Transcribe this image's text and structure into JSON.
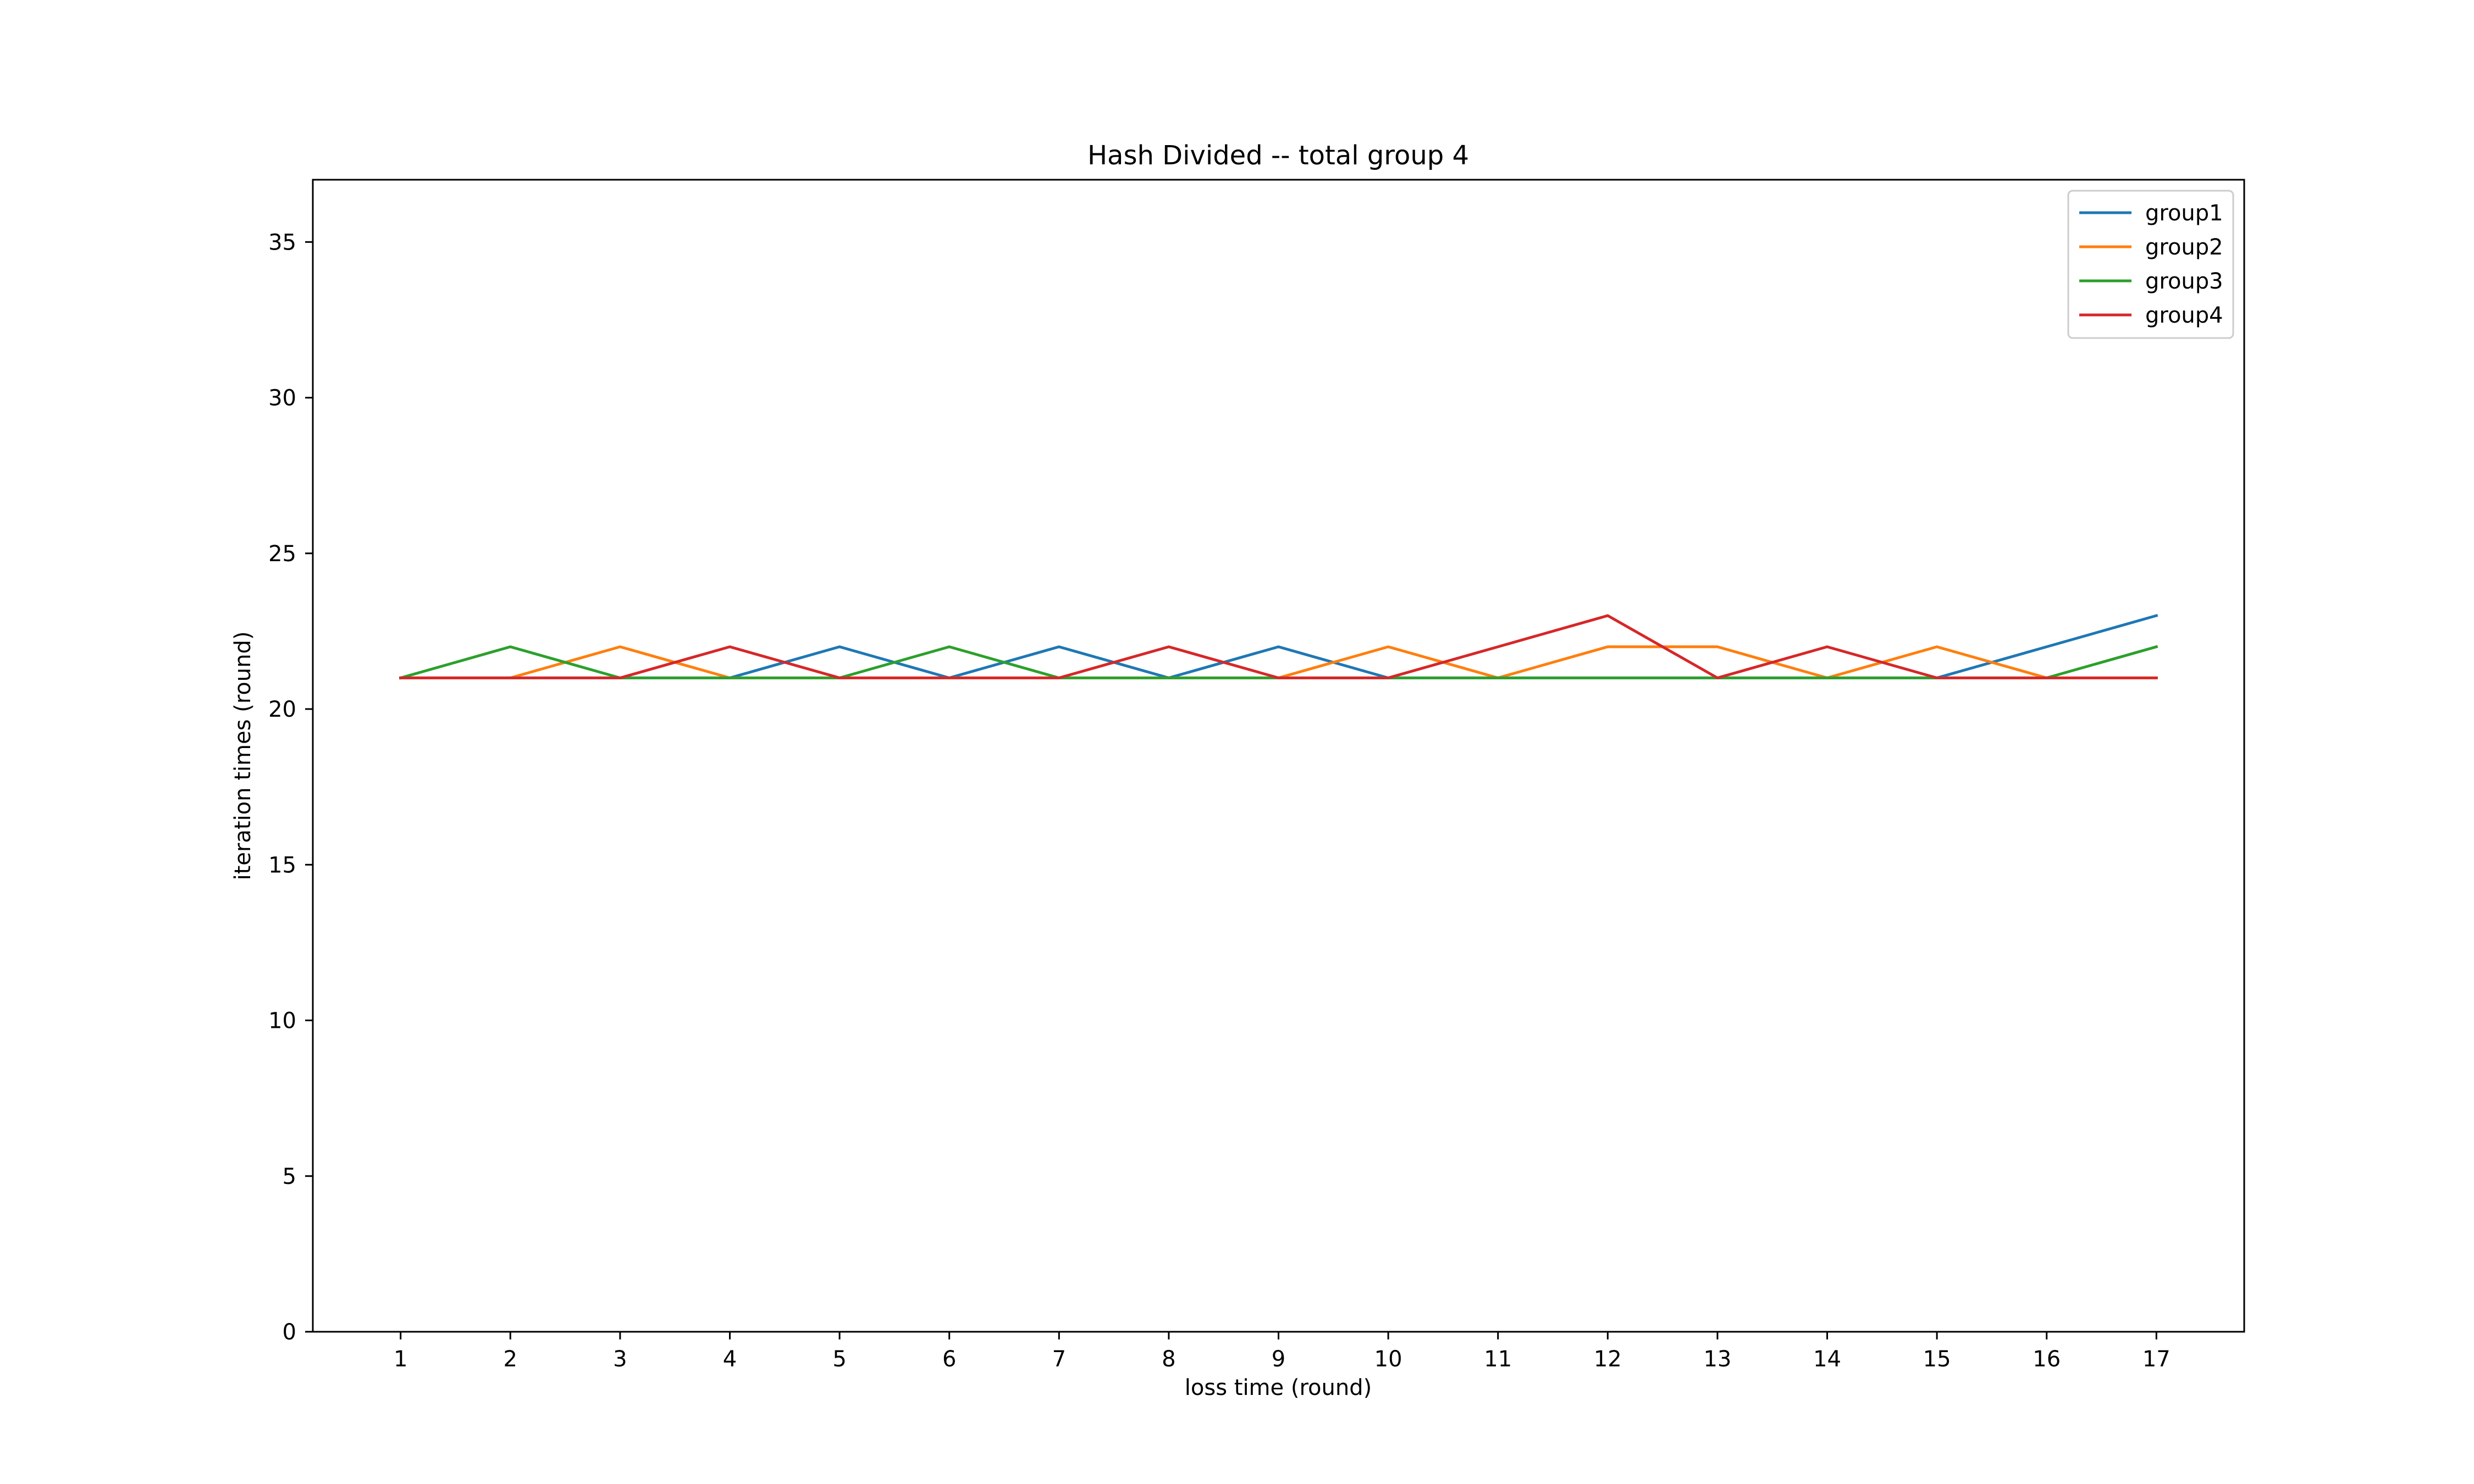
{
  "chart_data": {
    "type": "line",
    "title": "Hash Divided -- total group 4",
    "xlabel": "loss time (round)",
    "ylabel": "iteration times (round)",
    "x": [
      1,
      2,
      3,
      4,
      5,
      6,
      7,
      8,
      9,
      10,
      11,
      12,
      13,
      14,
      15,
      16,
      17
    ],
    "xlim": [
      0.2,
      17.8
    ],
    "ylim": [
      0,
      37
    ],
    "xticks": [
      1,
      2,
      3,
      4,
      5,
      6,
      7,
      8,
      9,
      10,
      11,
      12,
      13,
      14,
      15,
      16,
      17
    ],
    "yticks": [
      0,
      5,
      10,
      15,
      20,
      25,
      30,
      35
    ],
    "grid": false,
    "legend_position": "top-right",
    "series": [
      {
        "name": "group1",
        "color": "#1f77b4",
        "values": [
          21,
          21,
          21,
          21,
          22,
          21,
          22,
          21,
          22,
          21,
          21,
          21,
          21,
          21,
          21,
          22,
          23
        ]
      },
      {
        "name": "group2",
        "color": "#ff7f0e",
        "values": [
          21,
          21,
          22,
          21,
          21,
          21,
          21,
          21,
          21,
          22,
          21,
          22,
          22,
          21,
          22,
          21,
          21
        ]
      },
      {
        "name": "group3",
        "color": "#2ca02c",
        "values": [
          21,
          22,
          21,
          21,
          21,
          22,
          21,
          21,
          21,
          21,
          21,
          21,
          21,
          21,
          21,
          21,
          22
        ]
      },
      {
        "name": "group4",
        "color": "#d62728",
        "values": [
          21,
          21,
          21,
          22,
          21,
          21,
          21,
          22,
          21,
          21,
          22,
          23,
          21,
          22,
          21,
          21,
          21
        ]
      }
    ]
  }
}
